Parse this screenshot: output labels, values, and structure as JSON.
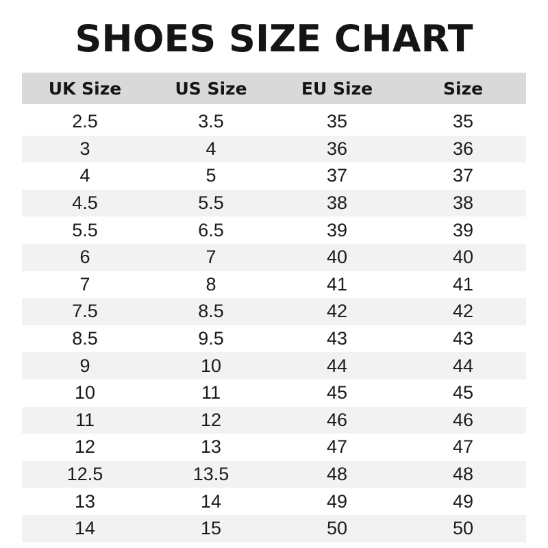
{
  "title": "SHOES SIZE CHART",
  "colors": {
    "header_bg": "#d9d9d9",
    "stripe_bg": "#f2f2f2",
    "text": "#151515"
  },
  "table": {
    "headers": [
      "UK Size",
      "US Size",
      "EU Size",
      "Size"
    ],
    "rows": [
      [
        "2.5",
        "3.5",
        "35",
        "35"
      ],
      [
        "3",
        "4",
        "36",
        "36"
      ],
      [
        "4",
        "5",
        "37",
        "37"
      ],
      [
        "4.5",
        "5.5",
        "38",
        "38"
      ],
      [
        "5.5",
        "6.5",
        "39",
        "39"
      ],
      [
        "6",
        "7",
        "40",
        "40"
      ],
      [
        "7",
        "8",
        "41",
        "41"
      ],
      [
        "7.5",
        "8.5",
        "42",
        "42"
      ],
      [
        "8.5",
        "9.5",
        "43",
        "43"
      ],
      [
        "9",
        "10",
        "44",
        "44"
      ],
      [
        "10",
        "11",
        "45",
        "45"
      ],
      [
        "11",
        "12",
        "46",
        "46"
      ],
      [
        "12",
        "13",
        "47",
        "47"
      ],
      [
        "12.5",
        "13.5",
        "48",
        "48"
      ],
      [
        "13",
        "14",
        "49",
        "49"
      ],
      [
        "14",
        "15",
        "50",
        "50"
      ]
    ]
  }
}
